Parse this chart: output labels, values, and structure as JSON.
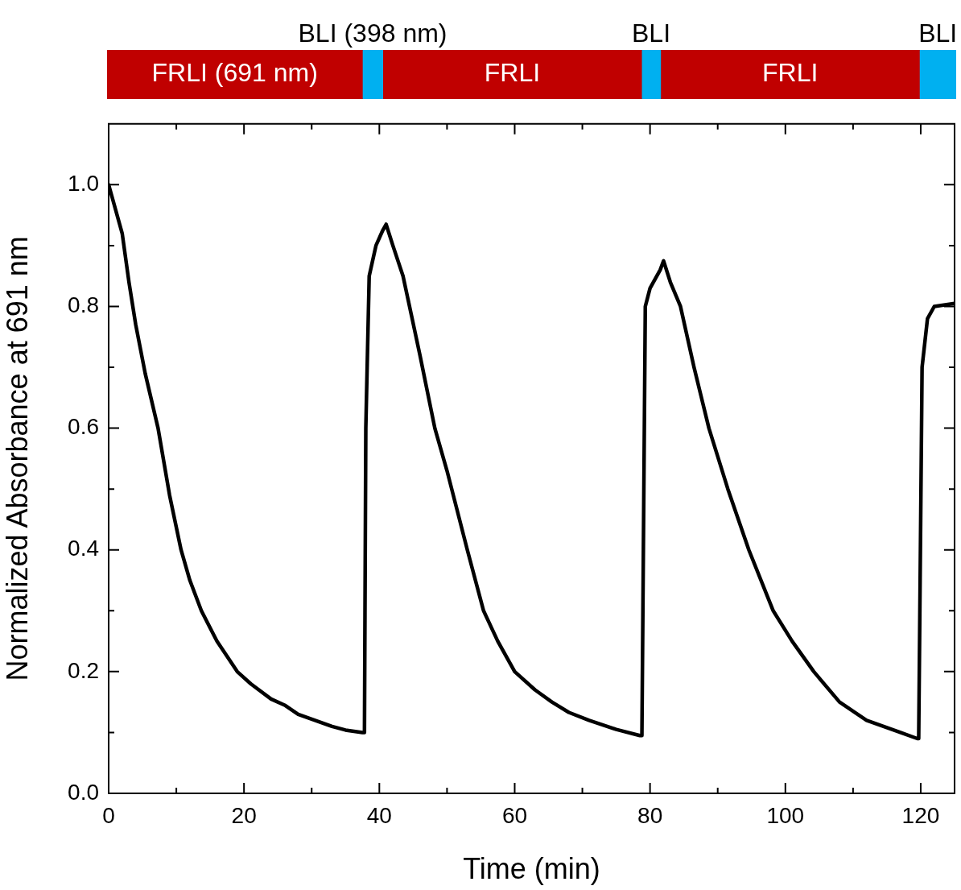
{
  "chart_data": [
    {
      "type": "bar",
      "orientation": "horizontal",
      "stacked": true,
      "categories": [
        null
      ],
      "xlim": [
        0,
        125
      ],
      "tick_labels": false,
      "legend": false,
      "series": [
        {
          "name": "FRLI (691 nm)",
          "color": "#c00000",
          "values": [
            37.6
          ]
        },
        {
          "name": "BLI (398 nm)",
          "color": "#00b0f0",
          "values": [
            3.0
          ]
        },
        {
          "name": "FRLI",
          "color": "#c00000",
          "values": [
            38.1
          ]
        },
        {
          "name": "BLI",
          "color": "#00b0f0",
          "values": [
            2.8
          ]
        },
        {
          "name": "FRLI",
          "color": "#c00000",
          "values": [
            38.1
          ]
        },
        {
          "name": "BLI",
          "color": "#00b0f0",
          "values": [
            5.4
          ]
        }
      ]
    },
    {
      "type": "line",
      "xlabel": "Time (min)",
      "ylabel": "Normalized Absorbance at 691 nm",
      "xlim": [
        0,
        125
      ],
      "ylim": [
        0,
        1.1
      ],
      "xticks": [
        0,
        {
          "value": 10,
          "label": null
        },
        20,
        {
          "value": 30,
          "label": null
        },
        40,
        {
          "value": 50,
          "label": null
        },
        60,
        {
          "value": 70,
          "label": null
        },
        80,
        {
          "value": 90,
          "label": null
        },
        100,
        {
          "value": 110,
          "label": null
        },
        120
      ],
      "yticks": [
        {
          "value": 0,
          "label": "0.0"
        },
        {
          "value": 0.1,
          "label": null
        },
        {
          "value": 0.2,
          "label": "0.2"
        },
        {
          "value": 0.3,
          "label": null
        },
        {
          "value": 0.4,
          "label": "0.4"
        },
        {
          "value": 0.5,
          "label": null
        },
        {
          "value": 0.6,
          "label": "0.6"
        },
        {
          "value": 0.7,
          "label": null
        },
        {
          "value": 0.8,
          "label": "0.8"
        },
        {
          "value": 0.9,
          "label": null
        },
        {
          "value": 1.0,
          "label": "1.0"
        }
      ],
      "grid": false,
      "legend": false,
      "marker": "none",
      "line_style": "solid",
      "series": [
        {
          "color": "#000000",
          "x": [
            0,
            1,
            2,
            3,
            4,
            5.4,
            7.3,
            9,
            10.7,
            12,
            13.7,
            16,
            19,
            21,
            24,
            26,
            28,
            30,
            33,
            35,
            37.5,
            37.8,
            38,
            38.5,
            39.5,
            40.5,
            41,
            42,
            43.5,
            46,
            48.2,
            50,
            53,
            55.4,
            57.5,
            60,
            63,
            65.5,
            68,
            71,
            75,
            78.5,
            78.8,
            79.3,
            80,
            81.5,
            82,
            83,
            84.5,
            86.5,
            88.7,
            91.5,
            94.6,
            98.2,
            101,
            104.2,
            108,
            112,
            117,
            119.5,
            119.7,
            120.2,
            121,
            122,
            125
          ],
          "values": [
            1.0,
            0.96,
            0.92,
            0.84,
            0.77,
            0.69,
            0.6,
            0.49,
            0.4,
            0.35,
            0.3,
            0.25,
            0.2,
            0.18,
            0.155,
            0.145,
            0.13,
            0.122,
            0.11,
            0.104,
            0.1,
            0.1,
            0.6,
            0.85,
            0.9,
            0.925,
            0.935,
            0.9,
            0.85,
            0.72,
            0.6,
            0.53,
            0.4,
            0.3,
            0.25,
            0.2,
            0.17,
            0.15,
            0.133,
            0.12,
            0.105,
            0.095,
            0.095,
            0.8,
            0.83,
            0.86,
            0.875,
            0.84,
            0.8,
            0.7,
            0.6,
            0.5,
            0.4,
            0.3,
            0.25,
            0.2,
            0.15,
            0.12,
            0.1,
            0.09,
            0.09,
            0.7,
            0.78,
            0.8,
            0.805
          ]
        }
      ]
    }
  ]
}
